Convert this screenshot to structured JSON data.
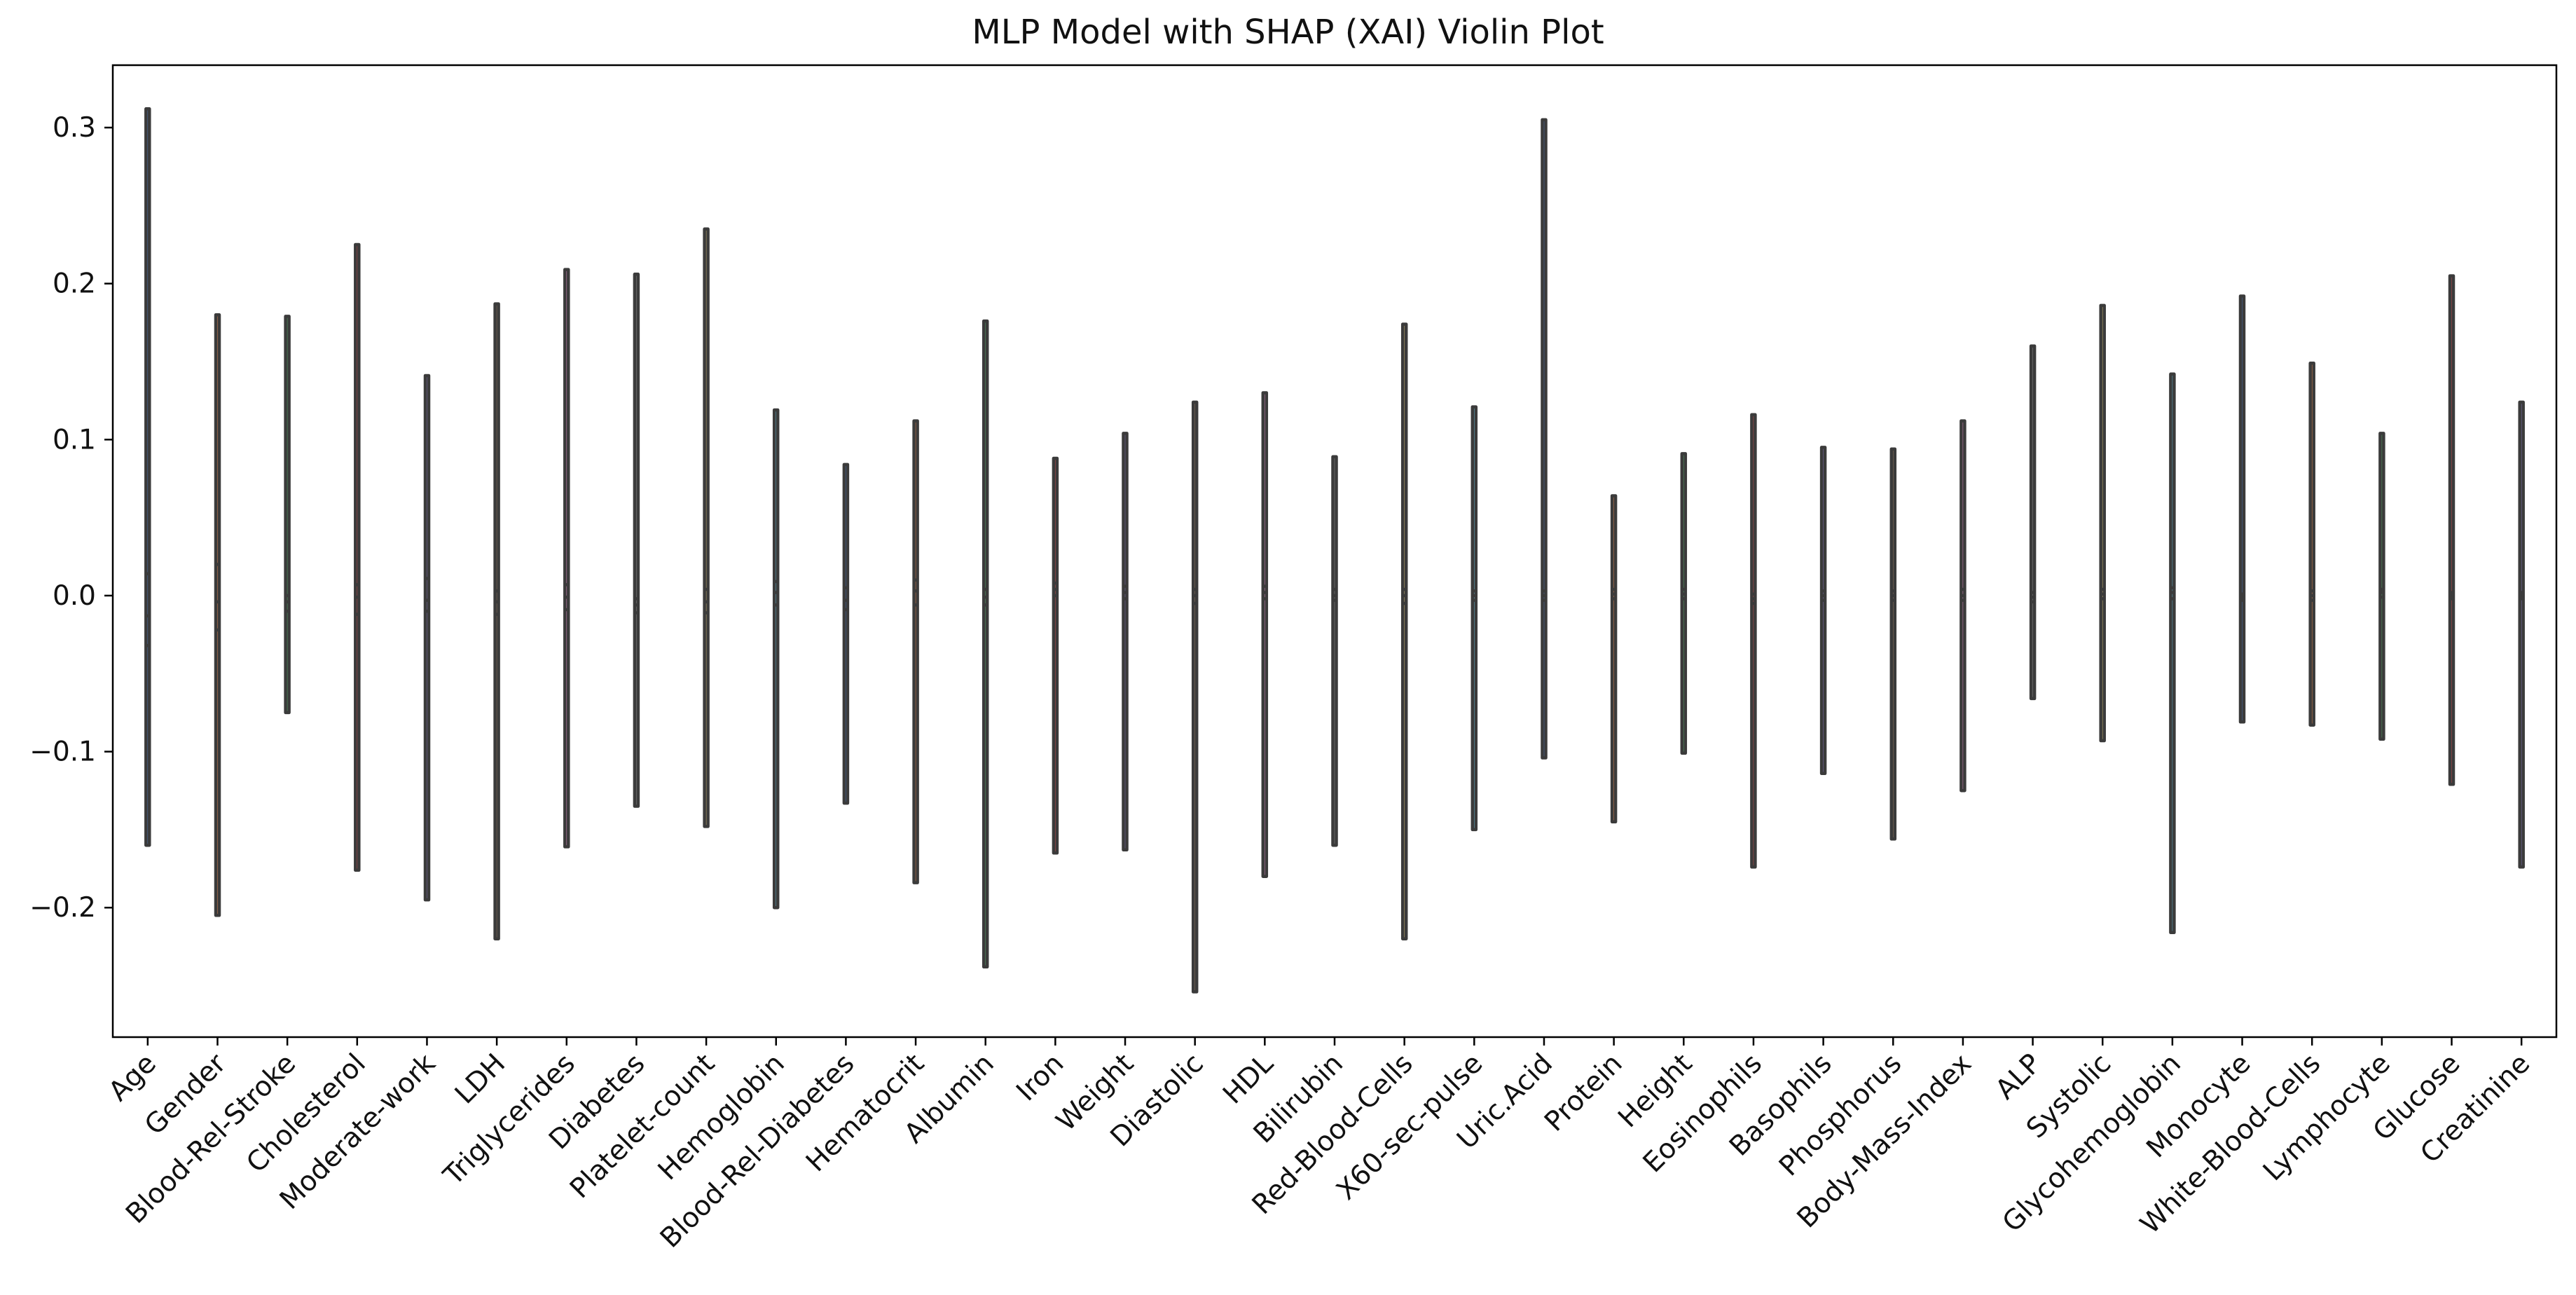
{
  "chart_data": {
    "type": "violin",
    "title": "MLP Model with SHAP (XAI) Violin Plot",
    "xlabel": "",
    "ylabel": "",
    "ylim": [
      -0.283,
      0.34
    ],
    "yticks": [
      -0.2,
      -0.1,
      0.0,
      0.1,
      0.2,
      0.3
    ],
    "ytick_labels": [
      "−0.2",
      "−0.1",
      "0.0",
      "0.1",
      "0.2",
      "0.3"
    ],
    "grid": false,
    "series": [
      {
        "category": "Age",
        "color": "#4c72b0",
        "min": -0.16,
        "max": 0.312,
        "q1": -0.032,
        "median": -0.013,
        "q3": 0.014
      },
      {
        "category": "Gender",
        "color": "#dd8452",
        "min": -0.205,
        "max": 0.18,
        "q1": -0.022,
        "median": -0.004,
        "q3": 0.02
      },
      {
        "category": "Blood-Rel-Stroke",
        "color": "#55a868",
        "min": -0.075,
        "max": 0.179,
        "q1": -0.01,
        "median": -0.004,
        "q3": 0.0
      },
      {
        "category": "Cholesterol",
        "color": "#c44e52",
        "min": -0.176,
        "max": 0.225,
        "q1": -0.012,
        "median": -0.001,
        "q3": 0.007
      },
      {
        "category": "Moderate-work",
        "color": "#8172b3",
        "min": -0.195,
        "max": 0.141,
        "q1": -0.01,
        "median": -0.003,
        "q3": 0.011
      },
      {
        "category": "LDH",
        "color": "#937860",
        "min": -0.22,
        "max": 0.187,
        "q1": -0.012,
        "median": -0.004,
        "q3": 0.003
      },
      {
        "category": "Triglycerides",
        "color": "#da8bc3",
        "min": -0.161,
        "max": 0.209,
        "q1": -0.009,
        "median": -0.001,
        "q3": 0.007
      },
      {
        "category": "Diabetes",
        "color": "#8c8c8c",
        "min": -0.135,
        "max": 0.206,
        "q1": -0.011,
        "median": -0.006,
        "q3": -0.002
      },
      {
        "category": "Platelet-count",
        "color": "#ccb974",
        "min": -0.148,
        "max": 0.235,
        "q1": -0.011,
        "median": -0.004,
        "q3": 0.004
      },
      {
        "category": "Hemoglobin",
        "color": "#64b5cd",
        "min": -0.2,
        "max": 0.119,
        "q1": -0.006,
        "median": 0.002,
        "q3": 0.009
      },
      {
        "category": "Blood-Rel-Diabetes",
        "color": "#4c72b0",
        "min": -0.133,
        "max": 0.084,
        "q1": -0.009,
        "median": -0.003,
        "q3": 0.005
      },
      {
        "category": "Hematocrit",
        "color": "#dd8452",
        "min": -0.184,
        "max": 0.112,
        "q1": -0.006,
        "median": 0.003,
        "q3": 0.01
      },
      {
        "category": "Albumin",
        "color": "#55a868",
        "min": -0.238,
        "max": 0.176,
        "q1": -0.006,
        "median": -0.001,
        "q3": 0.004
      },
      {
        "category": "Iron",
        "color": "#c44e52",
        "min": -0.165,
        "max": 0.088,
        "q1": 0.0,
        "median": 0.004,
        "q3": 0.008
      },
      {
        "category": "Weight",
        "color": "#8172b3",
        "min": -0.163,
        "max": 0.104,
        "q1": -0.002,
        "median": 0.002,
        "q3": 0.006
      },
      {
        "category": "Diastolic",
        "color": "#937860",
        "min": -0.254,
        "max": 0.124,
        "q1": -0.005,
        "median": 0.0,
        "q3": 0.004
      },
      {
        "category": "HDL",
        "color": "#da8bc3",
        "min": -0.18,
        "max": 0.13,
        "q1": -0.002,
        "median": 0.002,
        "q3": 0.006
      },
      {
        "category": "Bilirubin",
        "color": "#8c8c8c",
        "min": -0.16,
        "max": 0.089,
        "q1": -0.003,
        "median": 0.0,
        "q3": 0.004
      },
      {
        "category": "Red-Blood-Cells",
        "color": "#ccb974",
        "min": -0.22,
        "max": 0.174,
        "q1": -0.005,
        "median": 0.0,
        "q3": 0.004
      },
      {
        "category": "X60-sec-pulse",
        "color": "#64b5cd",
        "min": -0.15,
        "max": 0.121,
        "q1": -0.003,
        "median": 0.0,
        "q3": 0.003
      },
      {
        "category": "Uric.Acid",
        "color": "#4c72b0",
        "min": -0.104,
        "max": 0.305,
        "q1": -0.003,
        "median": 0.0,
        "q3": 0.003
      },
      {
        "category": "Protein",
        "color": "#dd8452",
        "min": -0.145,
        "max": 0.064,
        "q1": -0.002,
        "median": 0.001,
        "q3": 0.004
      },
      {
        "category": "Height",
        "color": "#55a868",
        "min": -0.101,
        "max": 0.091,
        "q1": -0.002,
        "median": 0.001,
        "q3": 0.004
      },
      {
        "category": "Eosinophils",
        "color": "#c44e52",
        "min": -0.174,
        "max": 0.116,
        "q1": -0.005,
        "median": -0.002,
        "q3": 0.001
      },
      {
        "category": "Basophils",
        "color": "#8172b3",
        "min": -0.114,
        "max": 0.095,
        "q1": -0.003,
        "median": 0.0,
        "q3": 0.003
      },
      {
        "category": "Phosphorus",
        "color": "#937860",
        "min": -0.156,
        "max": 0.094,
        "q1": -0.003,
        "median": 0.0,
        "q3": 0.003
      },
      {
        "category": "Body-Mass-Index",
        "color": "#da8bc3",
        "min": -0.125,
        "max": 0.112,
        "q1": -0.003,
        "median": 0.0,
        "q3": 0.004
      },
      {
        "category": "ALP",
        "color": "#8c8c8c",
        "min": -0.066,
        "max": 0.16,
        "q1": -0.004,
        "median": -0.001,
        "q3": 0.002
      },
      {
        "category": "Systolic",
        "color": "#ccb974",
        "min": -0.093,
        "max": 0.186,
        "q1": -0.002,
        "median": 0.001,
        "q3": 0.004
      },
      {
        "category": "Glycohemoglobin",
        "color": "#64b5cd",
        "min": -0.216,
        "max": 0.142,
        "q1": -0.002,
        "median": 0.002,
        "q3": 0.005
      },
      {
        "category": "Monocyte",
        "color": "#4c72b0",
        "min": -0.081,
        "max": 0.192,
        "q1": -0.003,
        "median": -0.001,
        "q3": 0.001
      },
      {
        "category": "White-Blood-Cells",
        "color": "#dd8452",
        "min": -0.083,
        "max": 0.149,
        "q1": -0.003,
        "median": 0.0,
        "q3": 0.003
      },
      {
        "category": "Lymphocyte",
        "color": "#55a868",
        "min": -0.092,
        "max": 0.104,
        "q1": -0.001,
        "median": 0.002,
        "q3": 0.004
      },
      {
        "category": "Glucose",
        "color": "#c44e52",
        "min": -0.121,
        "max": 0.205,
        "q1": -0.002,
        "median": 0.0,
        "q3": 0.002
      },
      {
        "category": "Creatinine",
        "color": "#8172b3",
        "min": -0.174,
        "max": 0.124,
        "q1": -0.002,
        "median": 0.0,
        "q3": 0.002
      }
    ]
  }
}
